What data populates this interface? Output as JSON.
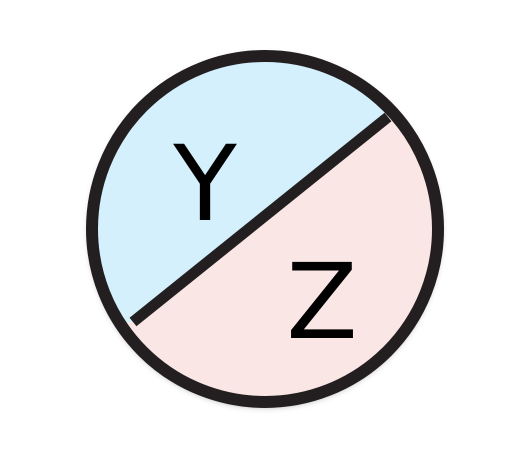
{
  "diagram": {
    "labels": {
      "top": "Y",
      "bottom": "Z"
    },
    "colors": {
      "top_fill": "#d3f0fc",
      "bottom_fill": "#fbe6e6",
      "outline": "#231f20",
      "text": "#000000"
    }
  }
}
